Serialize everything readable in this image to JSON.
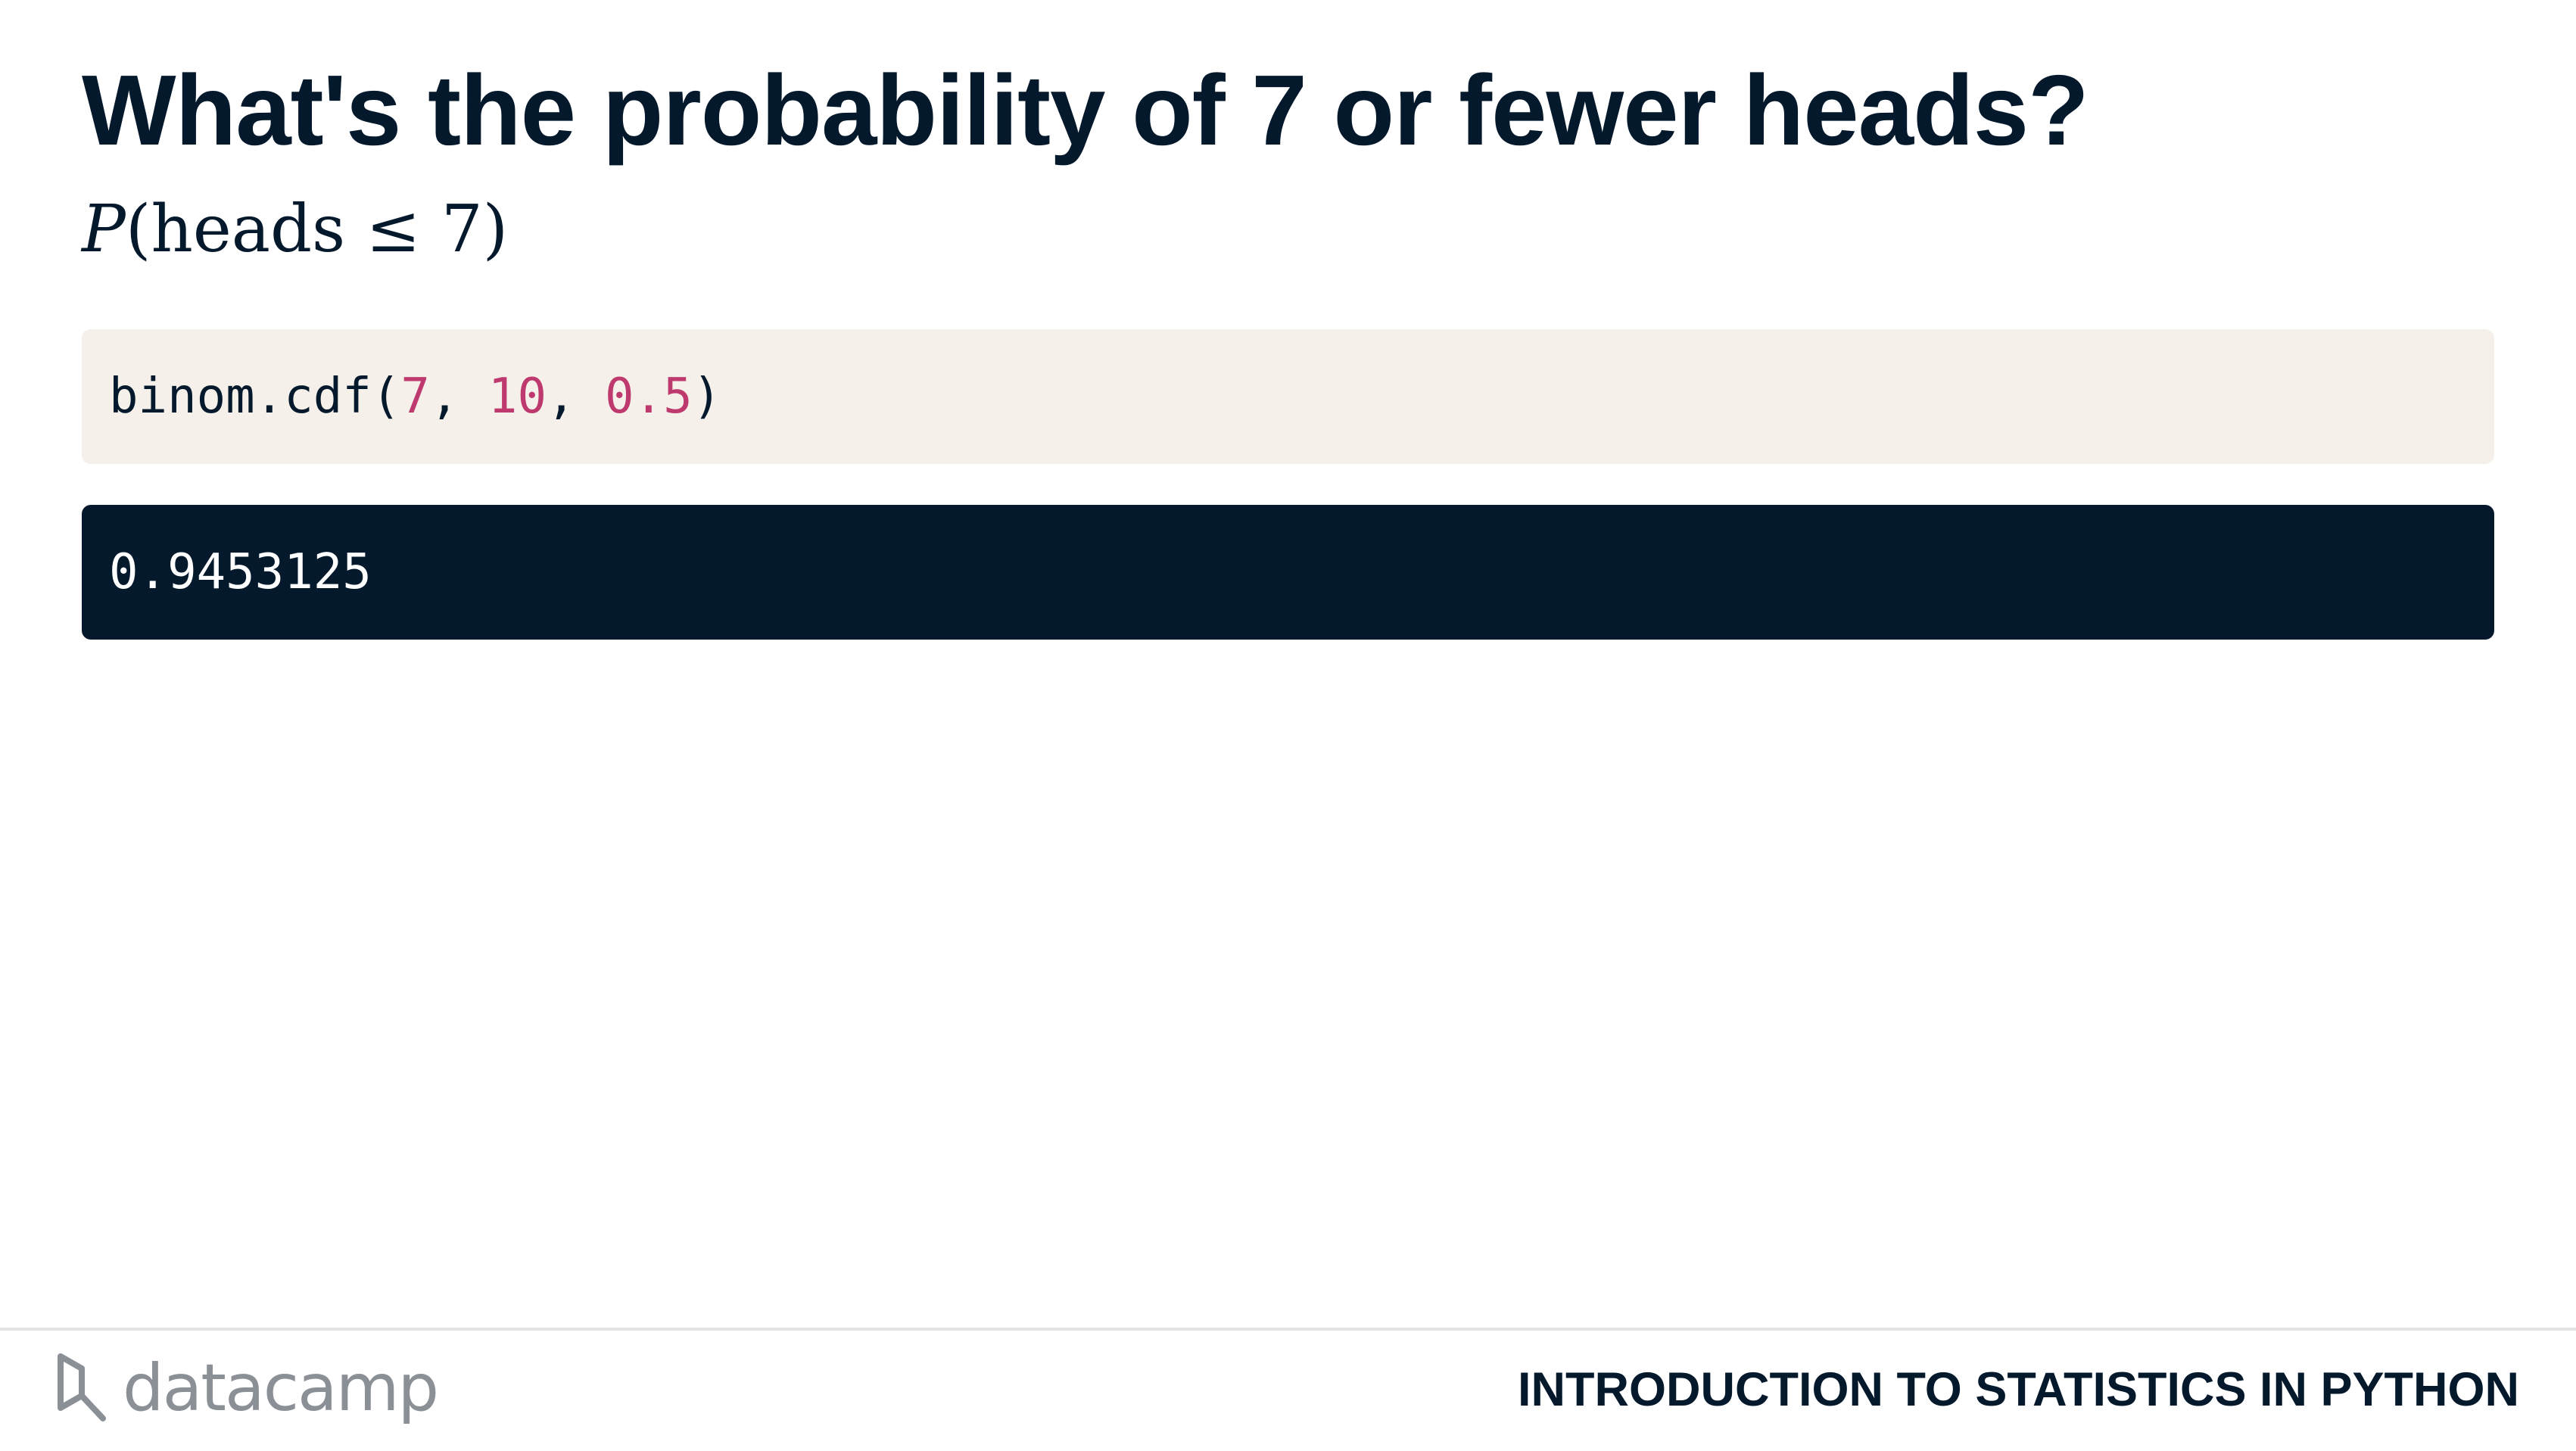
{
  "slide": {
    "title": "What's the probability of 7 or fewer heads?",
    "formula": {
      "function": "P",
      "open": "(",
      "text": "heads",
      "operator": "≤",
      "value": "7",
      "close": ")"
    }
  },
  "code": {
    "prefix": "binom.cdf(",
    "arg1": "7",
    "sep1": ", ",
    "arg2": "10",
    "sep2": ", ",
    "arg3": "0.5",
    "suffix": ")"
  },
  "output": {
    "value": "0.9453125"
  },
  "footer": {
    "logo_text": "datacamp",
    "logo_icon": "datacamp-logo-icon",
    "course_title": "INTRODUCTION TO STATISTICS IN PYTHON"
  },
  "colors": {
    "text": "#05192d",
    "code_background": "#f5f1ea",
    "code_number": "#be3a6e",
    "output_background": "#05192d",
    "output_text": "#ffffff",
    "logo": "#8b8f96"
  }
}
